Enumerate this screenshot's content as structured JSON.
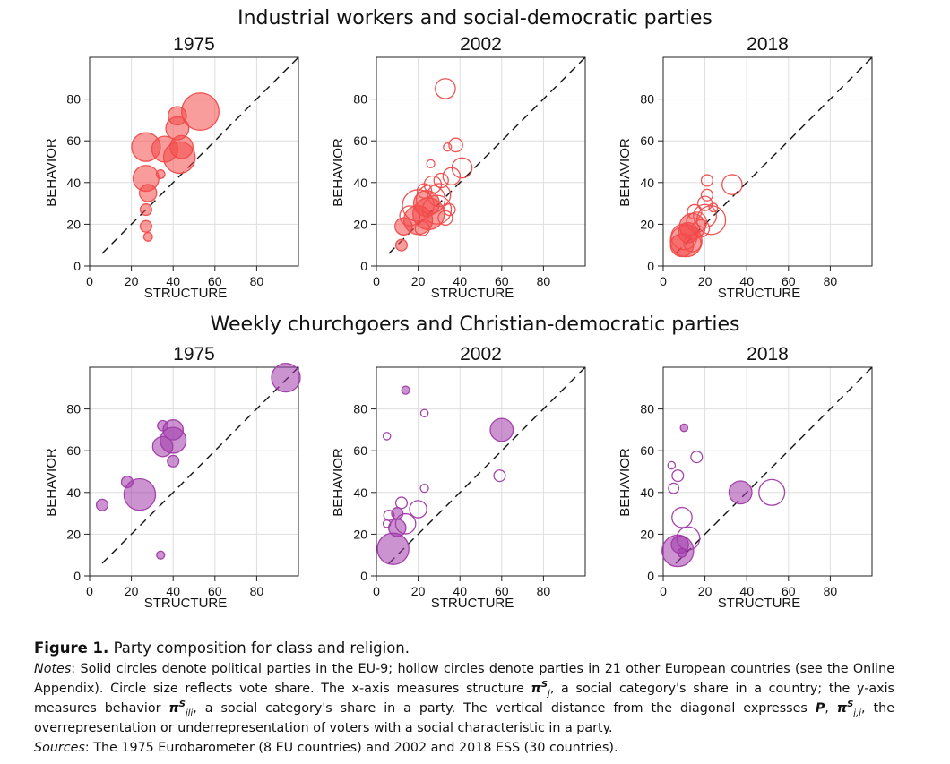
{
  "row_titles": [
    "Industrial workers and social-democratic parties",
    "Weekly churchgoers and Christian-democratic parties"
  ],
  "caption": {
    "label": "Figure 1.",
    "title": "Party composition for class and religion.",
    "notes_label": "Notes",
    "notes_1": ": Solid circles denote political parties in the EU-9; hollow circles denote parties in 21 other European countries (see the Online Appendix). Circle size reflects vote share. The x-axis measures structure ",
    "notes_pi1": "π",
    "notes_2": ", a social category's share in a country; the y-axis measures behavior ",
    "notes_pi2": "π",
    "notes_3": ", a social category's share in a party. The vertical distance from the diagonal expresses ",
    "notes_P": "P",
    "notes_4": ", ",
    "notes_pi3": "π",
    "notes_5": ", the overrepresentation or underrepresentation of voters with a social characteristic in a party.",
    "sources_label": "Sources",
    "sources_text": ": The 1975 Eurobarometer (8 EU countries) and 2002 and 2018 ESS (30 countries)."
  },
  "colors": {
    "red": "#f24a4a",
    "purple": "#a13aa9",
    "frame": "#222222",
    "grid": "#dedede"
  },
  "chart_data": [
    {
      "type": "scatter",
      "row": 0,
      "col": 0,
      "title": "1975",
      "xlabel": "STRUCTURE",
      "ylabel": "BEHAVIOR",
      "xlim": [
        0,
        100
      ],
      "ylim": [
        0,
        100
      ],
      "xticks": [
        0,
        20,
        40,
        60,
        80
      ],
      "yticks": [
        0,
        20,
        40,
        60,
        80
      ],
      "diagonal": true,
      "grid": true,
      "color": "red",
      "points": [
        {
          "x": 53,
          "y": 74,
          "size": 6.5,
          "solid": true
        },
        {
          "x": 42,
          "y": 72,
          "size": 3.2,
          "solid": true
        },
        {
          "x": 42,
          "y": 66,
          "size": 4.0,
          "solid": true
        },
        {
          "x": 27,
          "y": 57,
          "size": 5.0,
          "solid": true
        },
        {
          "x": 36,
          "y": 56,
          "size": 4.5,
          "solid": true
        },
        {
          "x": 44,
          "y": 57,
          "size": 4.0,
          "solid": true
        },
        {
          "x": 43,
          "y": 52,
          "size": 5.5,
          "solid": true
        },
        {
          "x": 34,
          "y": 44,
          "size": 1.5,
          "solid": true
        },
        {
          "x": 27,
          "y": 42,
          "size": 4.5,
          "solid": true
        },
        {
          "x": 28,
          "y": 35,
          "size": 3.0,
          "solid": true
        },
        {
          "x": 27,
          "y": 27,
          "size": 2.0,
          "solid": true
        },
        {
          "x": 27,
          "y": 19,
          "size": 2.0,
          "solid": true
        },
        {
          "x": 28,
          "y": 14,
          "size": 1.5,
          "solid": true
        }
      ]
    },
    {
      "type": "scatter",
      "row": 0,
      "col": 1,
      "title": "2002",
      "xlabel": "STRUCTURE",
      "ylabel": "BEHAVIOR",
      "xlim": [
        0,
        100
      ],
      "ylim": [
        0,
        100
      ],
      "xticks": [
        0,
        20,
        40,
        60,
        80
      ],
      "yticks": [
        0,
        20,
        40,
        60,
        80
      ],
      "diagonal": true,
      "grid": true,
      "color": "red",
      "points": [
        {
          "x": 33,
          "y": 85,
          "size": 3.5,
          "solid": false
        },
        {
          "x": 38,
          "y": 58,
          "size": 2.4,
          "solid": false
        },
        {
          "x": 34,
          "y": 57,
          "size": 1.4,
          "solid": false
        },
        {
          "x": 26,
          "y": 49,
          "size": 1.4,
          "solid": false
        },
        {
          "x": 41,
          "y": 47,
          "size": 3.5,
          "solid": false
        },
        {
          "x": 36,
          "y": 43,
          "size": 3.0,
          "solid": false
        },
        {
          "x": 31,
          "y": 41,
          "size": 2.5,
          "solid": false
        },
        {
          "x": 27,
          "y": 39,
          "size": 3.0,
          "solid": false
        },
        {
          "x": 23,
          "y": 36,
          "size": 2.5,
          "solid": false
        },
        {
          "x": 30,
          "y": 34,
          "size": 4.0,
          "solid": false
        },
        {
          "x": 26,
          "y": 32,
          "size": 5.0,
          "solid": false
        },
        {
          "x": 20,
          "y": 29,
          "size": 5.5,
          "solid": false
        },
        {
          "x": 24,
          "y": 30,
          "size": 4.5,
          "solid": true
        },
        {
          "x": 29,
          "y": 27,
          "size": 5.0,
          "solid": false
        },
        {
          "x": 25,
          "y": 25,
          "size": 5.5,
          "solid": true
        },
        {
          "x": 20,
          "y": 22,
          "size": 5.0,
          "solid": true
        },
        {
          "x": 16,
          "y": 24,
          "size": 3.5,
          "solid": false
        },
        {
          "x": 13,
          "y": 19,
          "size": 3.0,
          "solid": true
        },
        {
          "x": 35,
          "y": 27,
          "size": 2.0,
          "solid": false
        },
        {
          "x": 33,
          "y": 23,
          "size": 2.5,
          "solid": false
        },
        {
          "x": 22,
          "y": 18,
          "size": 2.5,
          "solid": false
        },
        {
          "x": 12,
          "y": 10,
          "size": 2.0,
          "solid": true
        }
      ]
    },
    {
      "type": "scatter",
      "row": 0,
      "col": 2,
      "title": "2018",
      "xlabel": "STRUCTURE",
      "ylabel": "BEHAVIOR",
      "xlim": [
        0,
        100
      ],
      "ylim": [
        0,
        100
      ],
      "xticks": [
        0,
        20,
        40,
        60,
        80
      ],
      "yticks": [
        0,
        20,
        40,
        60,
        80
      ],
      "diagonal": true,
      "grid": true,
      "color": "red",
      "points": [
        {
          "x": 21,
          "y": 41,
          "size": 2.0,
          "solid": false
        },
        {
          "x": 33,
          "y": 39,
          "size": 3.5,
          "solid": false
        },
        {
          "x": 21,
          "y": 34,
          "size": 2.0,
          "solid": false
        },
        {
          "x": 20,
          "y": 30,
          "size": 2.5,
          "solid": false
        },
        {
          "x": 24,
          "y": 28,
          "size": 1.5,
          "solid": false
        },
        {
          "x": 15,
          "y": 26,
          "size": 2.5,
          "solid": false
        },
        {
          "x": 20,
          "y": 24,
          "size": 4.0,
          "solid": false
        },
        {
          "x": 23,
          "y": 22,
          "size": 5.0,
          "solid": false
        },
        {
          "x": 16,
          "y": 21,
          "size": 3.5,
          "solid": false
        },
        {
          "x": 14,
          "y": 19,
          "size": 4.5,
          "solid": true
        },
        {
          "x": 18,
          "y": 18,
          "size": 3.0,
          "solid": false
        },
        {
          "x": 12,
          "y": 16,
          "size": 3.5,
          "solid": true
        },
        {
          "x": 10,
          "y": 14,
          "size": 4.5,
          "solid": false
        },
        {
          "x": 11,
          "y": 12,
          "size": 5.5,
          "solid": true
        },
        {
          "x": 9,
          "y": 10,
          "size": 4.0,
          "solid": true
        },
        {
          "x": 14,
          "y": 11,
          "size": 3.0,
          "solid": false
        }
      ]
    },
    {
      "type": "scatter",
      "row": 1,
      "col": 0,
      "title": "1975",
      "xlabel": "STRUCTURE",
      "ylabel": "BEHAVIOR",
      "xlim": [
        0,
        100
      ],
      "ylim": [
        0,
        100
      ],
      "xticks": [
        0,
        20,
        40,
        60,
        80
      ],
      "yticks": [
        0,
        20,
        40,
        60,
        80
      ],
      "diagonal": true,
      "grid": true,
      "color": "purple",
      "points": [
        {
          "x": 94,
          "y": 95,
          "size": 5.0,
          "solid": true
        },
        {
          "x": 40,
          "y": 70,
          "size": 3.5,
          "solid": true
        },
        {
          "x": 35,
          "y": 72,
          "size": 1.8,
          "solid": true
        },
        {
          "x": 40,
          "y": 65,
          "size": 4.5,
          "solid": true
        },
        {
          "x": 35,
          "y": 62,
          "size": 3.5,
          "solid": true
        },
        {
          "x": 40,
          "y": 55,
          "size": 2.0,
          "solid": true
        },
        {
          "x": 18,
          "y": 45,
          "size": 2.0,
          "solid": true
        },
        {
          "x": 24,
          "y": 39,
          "size": 5.5,
          "solid": true
        },
        {
          "x": 6,
          "y": 34,
          "size": 2.0,
          "solid": true
        },
        {
          "x": 34,
          "y": 10,
          "size": 1.4,
          "solid": true
        }
      ]
    },
    {
      "type": "scatter",
      "row": 1,
      "col": 1,
      "title": "2002",
      "xlabel": "STRUCTURE",
      "ylabel": "BEHAVIOR",
      "xlim": [
        0,
        100
      ],
      "ylim": [
        0,
        100
      ],
      "xticks": [
        0,
        20,
        40,
        60,
        80
      ],
      "yticks": [
        0,
        20,
        40,
        60,
        80
      ],
      "diagonal": true,
      "grid": true,
      "color": "purple",
      "points": [
        {
          "x": 14,
          "y": 89,
          "size": 1.4,
          "solid": true
        },
        {
          "x": 23,
          "y": 78,
          "size": 1.3,
          "solid": false
        },
        {
          "x": 60,
          "y": 70,
          "size": 4.0,
          "solid": true
        },
        {
          "x": 5,
          "y": 67,
          "size": 1.3,
          "solid": false
        },
        {
          "x": 59,
          "y": 48,
          "size": 2.0,
          "solid": false
        },
        {
          "x": 23,
          "y": 42,
          "size": 1.4,
          "solid": false
        },
        {
          "x": 12,
          "y": 35,
          "size": 2.0,
          "solid": false
        },
        {
          "x": 20,
          "y": 32,
          "size": 3.0,
          "solid": false
        },
        {
          "x": 6,
          "y": 29,
          "size": 1.8,
          "solid": false
        },
        {
          "x": 10,
          "y": 30,
          "size": 2.0,
          "solid": true
        },
        {
          "x": 14,
          "y": 25,
          "size": 3.5,
          "solid": false
        },
        {
          "x": 5,
          "y": 25,
          "size": 1.3,
          "solid": false
        },
        {
          "x": 10,
          "y": 23,
          "size": 3.0,
          "solid": true
        },
        {
          "x": 8,
          "y": 13,
          "size": 5.5,
          "solid": true
        }
      ]
    },
    {
      "type": "scatter",
      "row": 1,
      "col": 2,
      "title": "2018",
      "xlabel": "STRUCTURE",
      "ylabel": "BEHAVIOR",
      "xlim": [
        0,
        100
      ],
      "ylim": [
        0,
        100
      ],
      "xticks": [
        0,
        20,
        40,
        60,
        80
      ],
      "yticks": [
        0,
        20,
        40,
        60,
        80
      ],
      "diagonal": true,
      "grid": true,
      "color": "purple",
      "points": [
        {
          "x": 10,
          "y": 71,
          "size": 1.3,
          "solid": true
        },
        {
          "x": 16,
          "y": 57,
          "size": 2.0,
          "solid": false
        },
        {
          "x": 4,
          "y": 53,
          "size": 1.3,
          "solid": false
        },
        {
          "x": 7,
          "y": 48,
          "size": 2.0,
          "solid": false
        },
        {
          "x": 5,
          "y": 42,
          "size": 1.8,
          "solid": false
        },
        {
          "x": 52,
          "y": 40,
          "size": 4.5,
          "solid": false
        },
        {
          "x": 37,
          "y": 40,
          "size": 4.0,
          "solid": true
        },
        {
          "x": 9,
          "y": 28,
          "size": 3.5,
          "solid": false
        },
        {
          "x": 12,
          "y": 18,
          "size": 4.0,
          "solid": false
        },
        {
          "x": 8,
          "y": 15,
          "size": 3.0,
          "solid": true
        },
        {
          "x": 7,
          "y": 12,
          "size": 5.5,
          "solid": true
        },
        {
          "x": 9,
          "y": 11,
          "size": 1.5,
          "solid": true
        }
      ]
    }
  ]
}
